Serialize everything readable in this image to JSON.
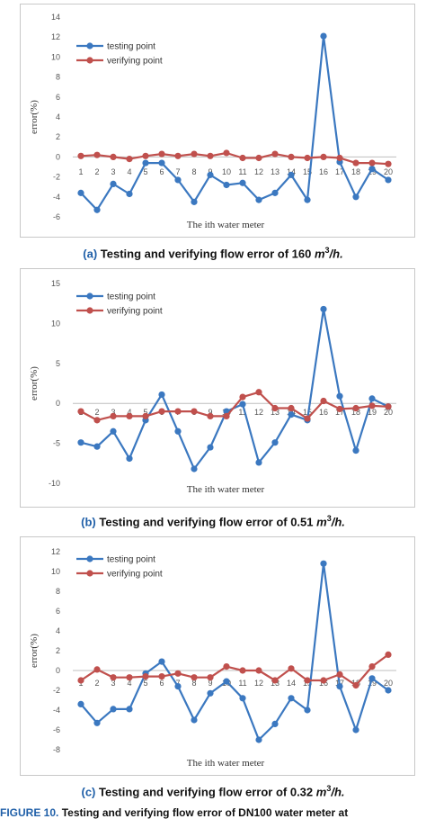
{
  "chart_data": [
    {
      "type": "line",
      "caption_tag": "(a)",
      "caption_text": "Testing and verifying flow error of 160",
      "caption_unit": "m",
      "caption_sup": "3",
      "caption_unit_tail": "/h.",
      "xlabel": "The ith water meter",
      "ylabel": "error(%)",
      "categories": [
        "1",
        "2",
        "3",
        "4",
        "5",
        "6",
        "7",
        "8",
        "9",
        "10",
        "11",
        "12",
        "13",
        "14",
        "15",
        "16",
        "17",
        "18",
        "19",
        "20"
      ],
      "ylim": [
        -6,
        14
      ],
      "yticks": [
        "-6",
        "-4",
        "-2",
        "0",
        "2",
        "4",
        "6",
        "8",
        "10",
        "12",
        "14"
      ],
      "legend": "top-left",
      "series": [
        {
          "name": "testing point",
          "color": "#3b78c0",
          "values": [
            -3.6,
            -5.3,
            -2.7,
            -3.7,
            -0.6,
            -0.6,
            -2.3,
            -4.5,
            -1.8,
            -2.8,
            -2.6,
            -4.3,
            -3.6,
            -1.8,
            -4.3,
            12.1,
            -0.5,
            -4.0,
            -1.2,
            -2.3
          ]
        },
        {
          "name": "verifying point",
          "color": "#c0504d",
          "values": [
            0.1,
            0.2,
            0.0,
            -0.2,
            0.1,
            0.3,
            0.1,
            0.3,
            0.1,
            0.4,
            -0.1,
            -0.1,
            0.3,
            0.0,
            -0.1,
            0.0,
            -0.1,
            -0.6,
            -0.6,
            -0.7
          ]
        }
      ]
    },
    {
      "type": "line",
      "caption_tag": "(b)",
      "caption_text": "Testing and verifying flow error of 0.51",
      "caption_unit": "m",
      "caption_sup": "3",
      "caption_unit_tail": "/h.",
      "xlabel": "The ith water meter",
      "ylabel": "error(%)",
      "categories": [
        "1",
        "2",
        "3",
        "4",
        "5",
        "6",
        "7",
        "8",
        "9",
        "10",
        "11",
        "12",
        "13",
        "14",
        "15",
        "16",
        "17",
        "18",
        "19",
        "20"
      ],
      "ylim": [
        -10,
        15
      ],
      "yticks": [
        "-10",
        "-5",
        "0",
        "5",
        "10",
        "15"
      ],
      "legend": "top-left",
      "series": [
        {
          "name": "testing point",
          "color": "#3b78c0",
          "values": [
            -4.9,
            -5.4,
            -3.5,
            -6.9,
            -2.1,
            1.1,
            -3.5,
            -8.2,
            -5.5,
            -1.0,
            -0.1,
            -7.4,
            -4.9,
            -1.4,
            -2.1,
            11.8,
            0.9,
            -5.9,
            0.6,
            -0.4
          ]
        },
        {
          "name": "verifying point",
          "color": "#c0504d",
          "values": [
            -1.0,
            -2.1,
            -1.6,
            -1.6,
            -1.6,
            -1.0,
            -1.0,
            -1.0,
            -1.6,
            -1.6,
            0.8,
            1.4,
            -0.6,
            -0.6,
            -1.9,
            0.3,
            -0.7,
            -0.6,
            -0.3,
            -0.4
          ]
        }
      ]
    },
    {
      "type": "line",
      "caption_tag": "(c)",
      "caption_text": "Testing and verifying flow error of 0.32",
      "caption_unit": "m",
      "caption_sup": "3",
      "caption_unit_tail": "/h.",
      "xlabel": "The ith water meter",
      "ylabel": "error(%)",
      "categories": [
        "1",
        "2",
        "3",
        "4",
        "5",
        "6",
        "7",
        "8",
        "9",
        "10",
        "11",
        "12",
        "13",
        "14",
        "15",
        "16",
        "17",
        "18",
        "19",
        "20"
      ],
      "ylim": [
        -8,
        12
      ],
      "yticks": [
        "-8",
        "-6",
        "-4",
        "-2",
        "0",
        "2",
        "4",
        "6",
        "8",
        "10",
        "12"
      ],
      "legend": "top-left",
      "series": [
        {
          "name": "testing point",
          "color": "#3b78c0",
          "values": [
            -3.4,
            -5.3,
            -3.9,
            -3.9,
            -0.3,
            0.9,
            -1.6,
            -5.0,
            -2.3,
            -1.1,
            -2.8,
            -7.0,
            -5.4,
            -2.8,
            -4.0,
            10.8,
            -1.6,
            -6.0,
            -0.8,
            -2.0
          ]
        },
        {
          "name": "verifying point",
          "color": "#c0504d",
          "values": [
            -1.0,
            0.1,
            -0.7,
            -0.7,
            -0.6,
            -0.6,
            -0.3,
            -0.7,
            -0.7,
            0.4,
            0.0,
            0.0,
            -1.0,
            0.2,
            -1.0,
            -1.0,
            -0.4,
            -1.5,
            0.4,
            1.6
          ]
        }
      ]
    }
  ],
  "figure_caption": {
    "label": "FIGURE 10.",
    "text": "Testing and verifying flow error of DN100 water meter at"
  }
}
